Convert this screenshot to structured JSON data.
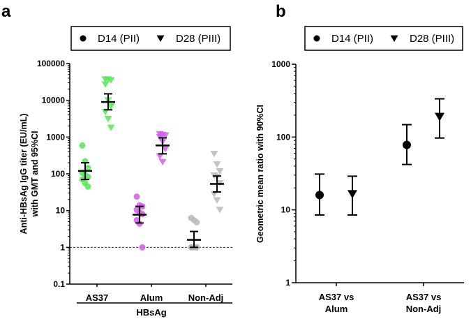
{
  "chart_data": [
    {
      "panel_label": "a",
      "type": "scatter",
      "y_scale": "log",
      "ylim": [
        0.1,
        100000
      ],
      "yticks": [
        "0.1",
        "1",
        "10",
        "100",
        "1000",
        "10000",
        "100000"
      ],
      "ylabel_lines": [
        "Anti-HBsAg IgG titer (EU/mL)",
        "with GMT and 95%CI"
      ],
      "categories": [
        "AS37",
        "Alum",
        "Non-Adj"
      ],
      "group_label": "HBsAg",
      "reference_line": 1,
      "legend": {
        "placement": "top",
        "entries": [
          {
            "symbol": "circle",
            "label": "D14 (PII)"
          },
          {
            "symbol": "triangle-down",
            "label": "D28 (PIII)"
          }
        ]
      },
      "colors": {
        "AS37": "#55e855",
        "Alum": "#d25ee8",
        "Non-Adj": "#b8b8b8"
      },
      "series": [
        {
          "name": "D14 (PII)",
          "groups": [
            {
              "category": "AS37",
              "points": [
                590,
                220,
                145,
                107,
                95,
                83,
                70,
                56,
                45
              ],
              "gmt": 120,
              "ci": [
                70,
                200
              ]
            },
            {
              "category": "Alum",
              "points": [
                24,
                14,
                13,
                10.5,
                9,
                8,
                5.5,
                4.4,
                1
              ],
              "gmt": 7.7,
              "ci": [
                4.6,
                13
              ]
            },
            {
              "category": "Non-Adj",
              "points": [
                6.3,
                5.5,
                4.8,
                1,
                1,
                1,
                1,
                1,
                1
              ],
              "gmt": 1.6,
              "ci": [
                1,
                2.7
              ]
            }
          ]
        },
        {
          "name": "D28 (PIII)",
          "groups": [
            {
              "category": "AS37",
              "points": [
                37000,
                37000,
                35000,
                27000,
                10000,
                6800,
                4800,
                3100,
                1800
              ],
              "gmt": 9000,
              "ci": [
                5500,
                15000
              ]
            },
            {
              "category": "Alum",
              "points": [
                1200,
                1150,
                1100,
                1000,
                740,
                470,
                300,
                210
              ],
              "gmt": 590,
              "ci": [
                350,
                950
              ]
            },
            {
              "category": "Non-Adj",
              "points": [
                350,
                180,
                117,
                90,
                83,
                56,
                28,
                19,
                10.5
              ],
              "gmt": 53,
              "ci": [
                32,
                87
              ]
            }
          ]
        }
      ]
    },
    {
      "panel_label": "b",
      "type": "scatter",
      "y_scale": "log",
      "ylim": [
        1,
        1000
      ],
      "yticks": [
        "1",
        "10",
        "100",
        "1000"
      ],
      "ylabel": "Geometric mean ratio with 90%CI",
      "categories": [
        [
          "AS37 vs",
          "Alum"
        ],
        [
          "AS37 vs",
          "Non-Adj"
        ]
      ],
      "legend": {
        "placement": "top",
        "entries": [
          {
            "symbol": "circle",
            "label": "D14 (PII)"
          },
          {
            "symbol": "triangle-down",
            "label": "D28 (PIII)"
          }
        ]
      },
      "series": [
        {
          "name": "D14 (PII)",
          "values": [
            16,
            78
          ],
          "ci": [
            [
              8.5,
              31
            ],
            [
              42,
              148
            ]
          ]
        },
        {
          "name": "D28 (PIII)",
          "values": [
            16.5,
            190
          ],
          "ci": [
            [
              8.5,
              29
            ],
            [
              97,
              335
            ]
          ]
        }
      ]
    }
  ]
}
